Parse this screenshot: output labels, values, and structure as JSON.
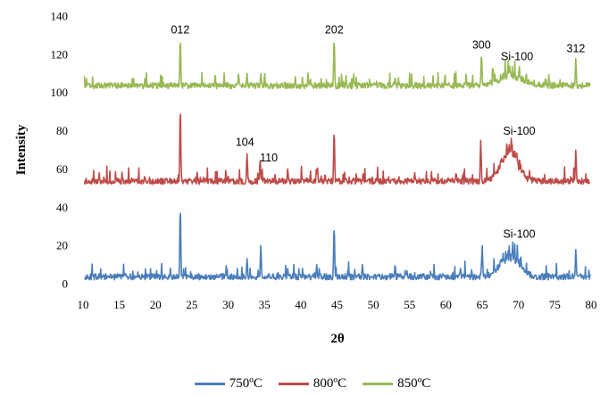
{
  "chart_data": {
    "type": "line",
    "title": "",
    "xlabel": "2θ",
    "ylabel": "Intensity",
    "xlim": [
      10,
      80
    ],
    "ylim": [
      0,
      140
    ],
    "xticks": [
      10,
      15,
      20,
      25,
      30,
      35,
      40,
      45,
      50,
      55,
      60,
      65,
      70,
      75,
      80
    ],
    "yticks": [
      0,
      20,
      40,
      60,
      80,
      100,
      120,
      140
    ],
    "grid": false,
    "legend_position": "bottom",
    "series": [
      {
        "name": "750ºC",
        "color": "#4a7ebb",
        "baseline": 2,
        "peaks": [
          [
            23.4,
            40
          ],
          [
            32.6,
            13
          ],
          [
            34.5,
            20
          ],
          [
            38.2,
            8
          ],
          [
            42.2,
            10
          ],
          [
            44.6,
            30
          ],
          [
            48.5,
            10
          ],
          [
            53.0,
            10
          ],
          [
            62.0,
            8
          ],
          [
            65.0,
            20
          ],
          [
            67.5,
            13
          ],
          [
            69.2,
            22
          ],
          [
            70.3,
            15
          ],
          [
            77.9,
            18
          ]
        ],
        "hump": {
          "center": 68.8,
          "height": 12,
          "width": 1.8
        }
      },
      {
        "name": "800ºC",
        "color": "#be4b48",
        "baseline": 52,
        "peaks": [
          [
            23.4,
            92
          ],
          [
            32.6,
            68
          ],
          [
            34.4,
            65
          ],
          [
            38.2,
            60
          ],
          [
            42.2,
            60
          ],
          [
            44.6,
            80
          ],
          [
            48.6,
            58
          ],
          [
            55.7,
            58
          ],
          [
            61.4,
            58
          ],
          [
            64.8,
            75
          ],
          [
            68.4,
            75
          ],
          [
            69.0,
            76
          ],
          [
            77.9,
            70
          ]
        ],
        "hump": {
          "center": 68.8,
          "height": 18,
          "width": 1.6
        }
      },
      {
        "name": "850ºC",
        "color": "#98b954",
        "baseline": 102,
        "peaks": [
          [
            23.4,
            128
          ],
          [
            28.2,
            109
          ],
          [
            32.6,
            110
          ],
          [
            34.5,
            110
          ],
          [
            41.0,
            109
          ],
          [
            44.6,
            128
          ],
          [
            53.0,
            108
          ],
          [
            64.9,
            120
          ],
          [
            66.5,
            113
          ],
          [
            68.8,
            114
          ],
          [
            70.1,
            114
          ],
          [
            77.9,
            118
          ]
        ],
        "hump": {
          "center": 68.8,
          "height": 6,
          "width": 2.2
        }
      }
    ],
    "annotations": [
      {
        "text": "012",
        "x": 23.4,
        "y": 131
      },
      {
        "text": "202",
        "x": 44.6,
        "y": 131
      },
      {
        "text": "300",
        "x": 64.9,
        "y": 123
      },
      {
        "text": "Si-100",
        "x": 69.8,
        "y": 117
      },
      {
        "text": "312",
        "x": 77.9,
        "y": 121
      },
      {
        "text": "104",
        "x": 32.3,
        "y": 72
      },
      {
        "text": "110",
        "x": 35.6,
        "y": 64
      },
      {
        "text": "Si-100",
        "x": 70.1,
        "y": 78
      },
      {
        "text": "Si-100",
        "x": 70.1,
        "y": 24
      }
    ]
  }
}
